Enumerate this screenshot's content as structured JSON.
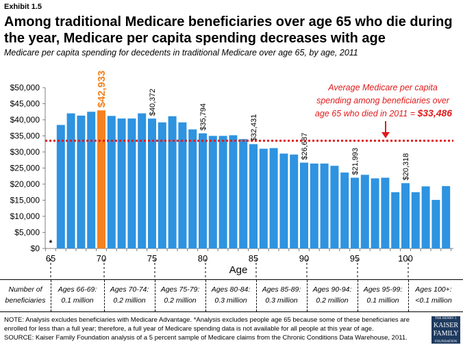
{
  "exhibit": "Exhibit 1.5",
  "title": "Among traditional Medicare beneficiaries over age 65 who die during the year, Medicare per capita spending decreases with age",
  "subtitle": "Medicare per capita spending for decedents in traditional Medicare over age 65, by age, 2011",
  "chart_data": {
    "type": "bar",
    "xlabel": "Age",
    "ylabel": "",
    "ylim": [
      0,
      50000
    ],
    "yticks": [
      "$0",
      "$5,000",
      "$10,000",
      "$15,000",
      "$20,000",
      "$25,000",
      "$30,000",
      "$35,000",
      "$40,000",
      "$45,000",
      "$50,000"
    ],
    "xticks": [
      "65",
      "70",
      "75",
      "80",
      "85",
      "90",
      "95",
      "100"
    ],
    "x": [
      66,
      67,
      68,
      69,
      70,
      71,
      72,
      73,
      74,
      75,
      76,
      77,
      78,
      79,
      80,
      81,
      82,
      83,
      84,
      85,
      86,
      87,
      88,
      89,
      90,
      91,
      92,
      93,
      94,
      95,
      96,
      97,
      98,
      99,
      100,
      101,
      102,
      103,
      104
    ],
    "values": [
      38400,
      42000,
      41300,
      42500,
      42933,
      41200,
      40400,
      40400,
      42000,
      40372,
      39200,
      41100,
      39200,
      37000,
      35794,
      35000,
      35000,
      35200,
      34000,
      32431,
      31000,
      31200,
      29500,
      29200,
      26687,
      26400,
      26400,
      25700,
      23600,
      21993,
      22900,
      21800,
      22000,
      17500,
      20318,
      17500,
      19300,
      15100,
      19400
    ],
    "labeled": {
      "70": "$42,933",
      "75": "$40,372",
      "80": "$35,794",
      "85": "$32,431",
      "90": "$26,687",
      "95": "$21,993",
      "100": "$20,318"
    },
    "highlight_age": 70,
    "age65_marker": "*",
    "bar_color": "#2e93e0",
    "highlight_color": "#f58220",
    "average": {
      "value": 33486,
      "color": "#e01b1b",
      "annotation_lines": [
        "Average Medicare per capita",
        "spending among beneficiaries over",
        "age 65 who died in 2011 = "
      ],
      "annotation_value": "$33,486"
    },
    "grid": false
  },
  "population": {
    "header": [
      "Number of",
      "beneficiaries"
    ],
    "groups": [
      [
        "Ages 66-69:",
        "0.1 million"
      ],
      [
        "Ages 70-74:",
        "0.2 million"
      ],
      [
        "Ages 75-79:",
        "0.2 million"
      ],
      [
        "Ages 80-84:",
        "0.3 million"
      ],
      [
        "Ages 85-89:",
        "0.3 million"
      ],
      [
        "Ages 90-94:",
        "0.2 million"
      ],
      [
        "Ages 95-99:",
        "0.1 million"
      ],
      [
        "Ages 100+:",
        "<0.1 million"
      ]
    ]
  },
  "notes": [
    "NOTE: Analysis excludes beneficiaries with Medicare Advantage. *Analysis excludes people age 65 because some of these beneficiaries are enrolled for less than a full year; therefore, a full year of Medicare spending data is not available for all people at this year of age.",
    "SOURCE: Kaiser Family Foundation analysis of a 5 percent sample of Medicare claims from the Chronic Conditions Data Warehouse, 2011."
  ],
  "logo": [
    "THE HENRY J.",
    "KAISER",
    "FAMILY",
    "FOUNDATION"
  ]
}
